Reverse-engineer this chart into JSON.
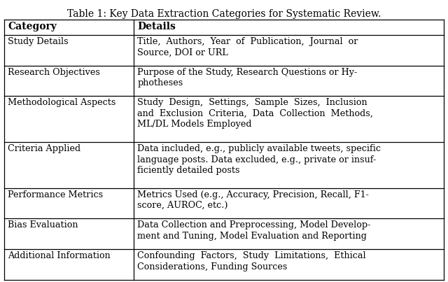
{
  "title": "Table 1: Key Data Extraction Categories for Systematic Review.",
  "headers": [
    "Category",
    "Details"
  ],
  "rows": [
    [
      "Study Details",
      "Title,  Authors,  Year  of  Publication,  Journal  or\nSource, DOI or URL"
    ],
    [
      "Research Objectives",
      "Purpose of the Study, Research Questions or Hy-\nphotheses"
    ],
    [
      "Methodological Aspects",
      "Study  Design,  Settings,  Sample  Sizes,  Inclusion\nand  Exclusion  Criteria,  Data  Collection  Methods,\nML/DL Models Employed"
    ],
    [
      "Criteria Applied",
      "Data included, e.g., publicly available tweets, specific\nlanguage posts. Data excluded, e.g., private or insuf-\nficiently detailed posts"
    ],
    [
      "Performance Metrics",
      "Metrics Used (e.g., Accuracy, Precision, Recall, F1-\nscore, AUROC, etc.)"
    ],
    [
      "Bias Evaluation",
      "Data Collection and Preprocessing, Model Develop-\nment and Tuning, Model Evaluation and Reporting"
    ],
    [
      "Additional Information",
      "Confounding  Factors,  Study  Limitations,  Ethical\nConsiderations, Funding Sources"
    ]
  ],
  "col_split": 0.295,
  "background_color": "#ffffff",
  "text_color": "#000000",
  "header_fontsize": 10.0,
  "cell_fontsize": 9.2,
  "title_fontsize": 10.0,
  "font_family": "DejaVu Serif",
  "row_line_counts": [
    2,
    2,
    3,
    3,
    2,
    2,
    2
  ],
  "header_line_count": 1
}
